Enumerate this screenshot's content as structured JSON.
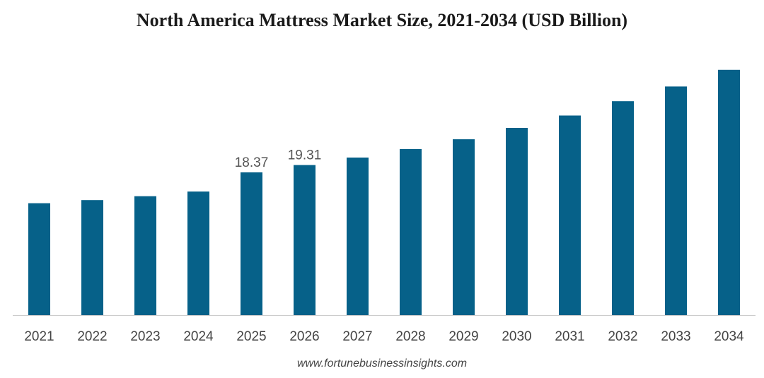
{
  "colors": {
    "bar": "#066189",
    "axis": "#cccccc"
  },
  "chart_data": {
    "type": "bar",
    "title": "North America Mattress Market Size, 2021-2034 (USD Billion)",
    "xlabel": "",
    "ylabel": "",
    "grid": false,
    "categories": [
      "2021",
      "2022",
      "2023",
      "2024",
      "2025",
      "2026",
      "2027",
      "2028",
      "2029",
      "2030",
      "2031",
      "2032",
      "2033",
      "2034"
    ],
    "values": [
      14.4,
      14.8,
      15.3,
      15.9,
      18.37,
      19.31,
      20.27,
      21.37,
      22.63,
      24.09,
      25.68,
      27.53,
      29.42,
      31.56
    ],
    "data_labels": [
      {
        "index": 4,
        "text": "18.37"
      },
      {
        "index": 5,
        "text": "19.31"
      }
    ],
    "ylim": [
      0,
      38
    ]
  },
  "source": "www.fortunebusinessinsights.com"
}
